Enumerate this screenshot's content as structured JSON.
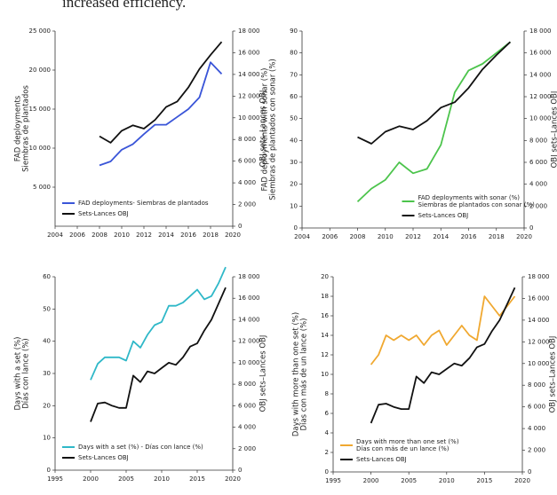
{
  "header_text": "increased efficiency.",
  "chart_data": [
    {
      "type": "line",
      "ylabel": "FAD deployments\nSiembras de plantados",
      "y2label": "OBJ sets–Lances OBJ",
      "x": [
        2008,
        2009,
        2010,
        2011,
        2012,
        2013,
        2014,
        2015,
        2016,
        2017,
        2018,
        2019
      ],
      "xlim": [
        2004,
        2020
      ],
      "xticks": [
        2004,
        2006,
        2008,
        2010,
        2012,
        2014,
        2016,
        2018,
        2020
      ],
      "ylim": [
        0,
        25000
      ],
      "yticks": [
        {
          "value": 5000,
          "label": "5 000"
        },
        {
          "value": 10000,
          "label": "10 000"
        },
        {
          "value": 15000,
          "label": "15 000"
        },
        {
          "value": 20000,
          "label": "20 000"
        },
        {
          "value": 25000,
          "label": "25 000"
        }
      ],
      "y2lim": [
        0,
        18000
      ],
      "y2ticks": [
        0,
        {
          "value": 2000,
          "label": "2 000"
        },
        {
          "value": 4000,
          "label": "4 000"
        },
        {
          "value": 6000,
          "label": "6 000"
        },
        {
          "value": 8000,
          "label": "8 000"
        },
        {
          "value": 10000,
          "label": "10 000"
        },
        {
          "value": 12000,
          "label": "12 000"
        },
        {
          "value": 14000,
          "label": "14 000"
        },
        {
          "value": 16000,
          "label": "16 000"
        },
        {
          "value": 18000,
          "label": "18 000"
        }
      ],
      "legend": "lower left",
      "series": [
        {
          "name": "FAD deployments- Siembras de plantados",
          "color": "#3a55d8",
          "values": [
            7800,
            8300,
            9800,
            10500,
            11800,
            13000,
            13000,
            14000,
            15000,
            16500,
            21000,
            19500
          ]
        },
        {
          "name": "Sets-Lances OBJ",
          "color": "#111111",
          "axis": "y2",
          "values": [
            8300,
            7700,
            8800,
            9300,
            9000,
            9800,
            11000,
            11500,
            12800,
            14500,
            15800,
            17000
          ]
        }
      ]
    },
    {
      "type": "line",
      "ylabel": "FAD deployments with sonar (%)\nSiembras de plantados con sonar (%)",
      "y2label": "OBJ sets–Lances OBJ",
      "x": [
        2008,
        2009,
        2010,
        2011,
        2012,
        2013,
        2014,
        2015,
        2016,
        2017,
        2018,
        2019
      ],
      "xlim": [
        2004,
        2020
      ],
      "xticks": [
        2004,
        2006,
        2008,
        2010,
        2012,
        2014,
        2016,
        2018,
        2020
      ],
      "ylim": [
        0,
        90
      ],
      "yticks": [
        0,
        10,
        20,
        30,
        40,
        50,
        60,
        70,
        80,
        90
      ],
      "y2lim": [
        0,
        18000
      ],
      "y2ticks": [
        0,
        {
          "value": 2000,
          "label": "2 000"
        },
        {
          "value": 4000,
          "label": "4 000"
        },
        {
          "value": 6000,
          "label": "6 000"
        },
        {
          "value": 8000,
          "label": "8 000"
        },
        {
          "value": 10000,
          "label": "10 000"
        },
        {
          "value": 12000,
          "label": "12 000"
        },
        {
          "value": 14000,
          "label": "14 000"
        },
        {
          "value": 16000,
          "label": "16 000"
        },
        {
          "value": 18000,
          "label": "18 000"
        }
      ],
      "legend": "lower right",
      "series": [
        {
          "name": "FAD deployments with sonar (%)\nSiembras de plantados con sonar (%)",
          "color": "#4cc44c",
          "values": [
            12,
            18,
            22,
            30,
            25,
            27,
            38,
            62,
            72,
            75,
            80,
            85
          ]
        },
        {
          "name": "Sets-Lances OBJ",
          "color": "#111111",
          "axis": "y2",
          "values": [
            8300,
            7700,
            8800,
            9300,
            9000,
            9800,
            11000,
            11500,
            12800,
            14500,
            15800,
            17000
          ]
        }
      ]
    },
    {
      "type": "line",
      "ylabel": "Days with a set (%)\nDías con lance (%)",
      "y2label": "OBJ sets–Lances OBJ",
      "x": [
        2000,
        2001,
        2002,
        2003,
        2004,
        2005,
        2006,
        2007,
        2008,
        2009,
        2010,
        2011,
        2012,
        2013,
        2014,
        2015,
        2016,
        2017,
        2018,
        2019
      ],
      "xlim": [
        1995,
        2020
      ],
      "xticks": [
        1995,
        2000,
        2005,
        2010,
        2015,
        2020
      ],
      "ylim": [
        0,
        60
      ],
      "yticks": [
        0,
        10,
        20,
        30,
        40,
        50,
        60
      ],
      "y2lim": [
        0,
        18000
      ],
      "y2ticks": [
        0,
        {
          "value": 2000,
          "label": "2 000"
        },
        {
          "value": 4000,
          "label": "4 000"
        },
        {
          "value": 6000,
          "label": "6 000"
        },
        {
          "value": 8000,
          "label": "8 000"
        },
        {
          "value": 10000,
          "label": "10 000"
        },
        {
          "value": 12000,
          "label": "12 000"
        },
        {
          "value": 14000,
          "label": "14 000"
        },
        {
          "value": 16000,
          "label": "16 000"
        },
        {
          "value": 18000,
          "label": "18 000"
        }
      ],
      "legend": "lower left",
      "series": [
        {
          "name": "Days with a set (%) - Días con lance (%)",
          "color": "#2fb8c8",
          "values": [
            28,
            33,
            35,
            35,
            35,
            34,
            40,
            38,
            42,
            45,
            46,
            51,
            51,
            52,
            54,
            56,
            53,
            54,
            58,
            63
          ]
        },
        {
          "name": "Sets-Lances OBJ",
          "color": "#111111",
          "axis": "y2",
          "values": [
            4500,
            6200,
            6300,
            6000,
            5800,
            5800,
            8800,
            8200,
            9200,
            9000,
            9500,
            10000,
            9800,
            10500,
            11500,
            11800,
            13000,
            14000,
            15500,
            17000
          ]
        }
      ]
    },
    {
      "type": "line",
      "ylabel": "Days with more than one set (%)\nDías con más de un lance (%)",
      "y2label": "OBJ sets–Lances OBJ",
      "x": [
        2000,
        2001,
        2002,
        2003,
        2004,
        2005,
        2006,
        2007,
        2008,
        2009,
        2010,
        2011,
        2012,
        2013,
        2014,
        2015,
        2016,
        2017,
        2018,
        2019
      ],
      "xlim": [
        1995,
        2020
      ],
      "xticks": [
        1995,
        2000,
        2005,
        2010,
        2015,
        2020
      ],
      "ylim": [
        0,
        20
      ],
      "yticks": [
        0,
        2,
        4,
        6,
        8,
        10,
        12,
        14,
        16,
        18,
        20
      ],
      "y2lim": [
        0,
        18000
      ],
      "y2ticks": [
        0,
        {
          "value": 2000,
          "label": "2 000"
        },
        {
          "value": 4000,
          "label": "4 000"
        },
        {
          "value": 6000,
          "label": "6 000"
        },
        {
          "value": 8000,
          "label": "8 000"
        },
        {
          "value": 10000,
          "label": "10 000"
        },
        {
          "value": 12000,
          "label": "12 000"
        },
        {
          "value": 14000,
          "label": "14 000"
        },
        {
          "value": 16000,
          "label": "16 000"
        },
        {
          "value": 18000,
          "label": "18 000"
        }
      ],
      "legend": "lower left",
      "series": [
        {
          "name": "Days with more than one set (%)\nDías con más de un lance (%)",
          "color": "#f0a830",
          "values": [
            11,
            12,
            14,
            13.5,
            14,
            13.5,
            14,
            13,
            14,
            14.5,
            13,
            14,
            15,
            14,
            13.5,
            18,
            17,
            16,
            17,
            18
          ]
        },
        {
          "name": "Sets-Lances OBJ",
          "color": "#111111",
          "axis": "y2",
          "values": [
            4500,
            6200,
            6300,
            6000,
            5800,
            5800,
            8800,
            8200,
            9200,
            9000,
            9500,
            10000,
            9800,
            10500,
            11500,
            11800,
            13000,
            14000,
            15500,
            17000
          ]
        }
      ]
    }
  ]
}
